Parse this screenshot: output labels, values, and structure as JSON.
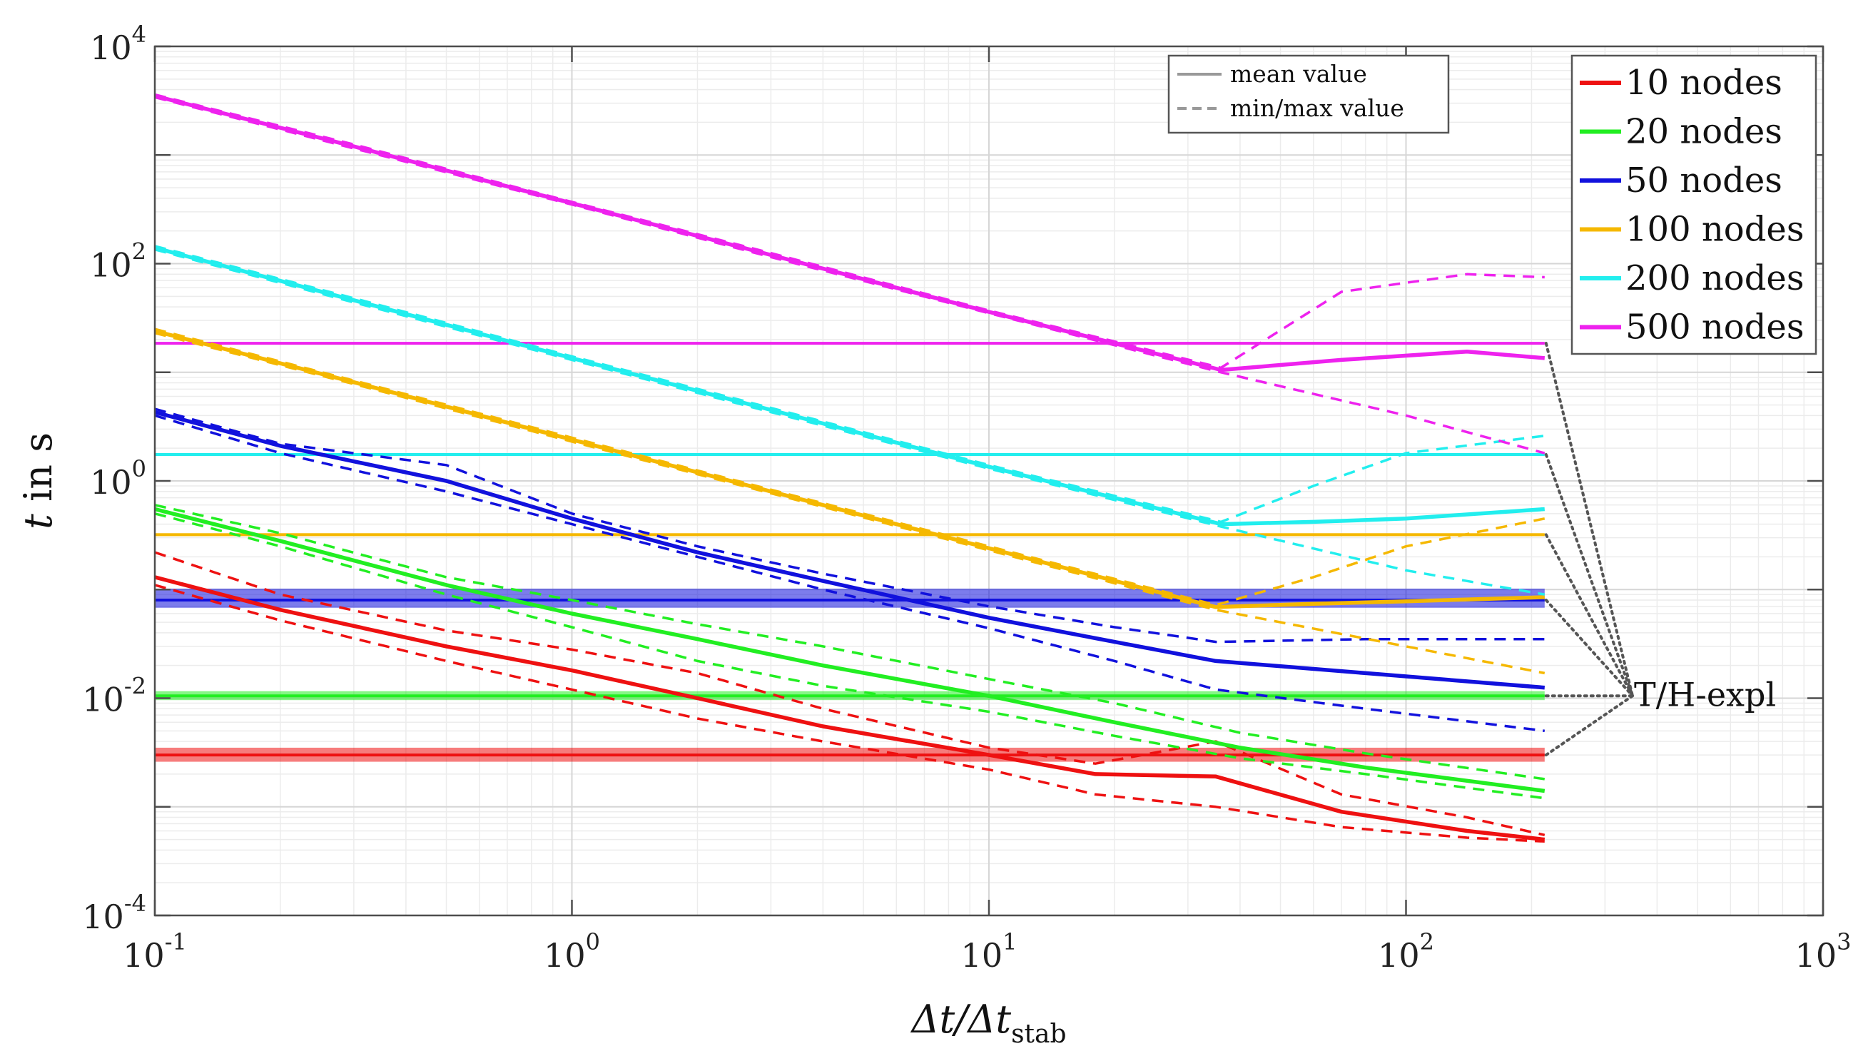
{
  "chart_data": {
    "type": "line",
    "xscale": "log",
    "yscale": "log",
    "xlim": [
      0.1,
      1000
    ],
    "ylim": [
      0.0001,
      10000
    ],
    "xticks": [
      {
        "value": 0.1,
        "base": "10",
        "exp": "-1"
      },
      {
        "value": 1,
        "base": "10",
        "exp": "0"
      },
      {
        "value": 10,
        "base": "10",
        "exp": "1"
      },
      {
        "value": 100,
        "base": "10",
        "exp": "2"
      },
      {
        "value": 1000,
        "base": "10",
        "exp": "3"
      }
    ],
    "yticks": [
      {
        "value": 0.0001,
        "base": "10",
        "exp": "-4"
      },
      {
        "value": 0.01,
        "base": "10",
        "exp": "-2"
      },
      {
        "value": 1,
        "base": "10",
        "exp": "0"
      },
      {
        "value": 100,
        "base": "10",
        "exp": "2"
      },
      {
        "value": 10000,
        "base": "10",
        "exp": "4"
      }
    ],
    "xlabel": {
      "main": "Δt/Δt",
      "sub": "stab"
    },
    "ylabel": {
      "var": "t",
      "rest": " in s"
    },
    "grid": true,
    "line_style_legend": [
      {
        "label": "mean value",
        "style": "solid"
      },
      {
        "label": "min/max value",
        "style": "dashed"
      }
    ],
    "annotation": "T/H-expl",
    "series": [
      {
        "name": "10 nodes",
        "color": "#ee1111",
        "mean": [
          [
            0.1,
            0.13
          ],
          [
            0.2,
            0.065
          ],
          [
            0.5,
            0.03
          ],
          [
            1,
            0.018
          ],
          [
            2,
            0.01
          ],
          [
            4,
            0.0055
          ],
          [
            10,
            0.003
          ],
          [
            18,
            0.002
          ],
          [
            35,
            0.0019
          ],
          [
            70,
            0.0009
          ],
          [
            140,
            0.0006
          ],
          [
            215,
            0.0005
          ]
        ],
        "min": [
          [
            0.1,
            0.11
          ],
          [
            0.2,
            0.052
          ],
          [
            0.5,
            0.022
          ],
          [
            1,
            0.012
          ],
          [
            2,
            0.0065
          ],
          [
            4,
            0.004
          ],
          [
            10,
            0.0022
          ],
          [
            18,
            0.0013
          ],
          [
            35,
            0.001
          ],
          [
            70,
            0.00065
          ],
          [
            140,
            0.00052
          ],
          [
            215,
            0.00048
          ]
        ],
        "max": [
          [
            0.1,
            0.22
          ],
          [
            0.2,
            0.09
          ],
          [
            0.5,
            0.042
          ],
          [
            1,
            0.028
          ],
          [
            2,
            0.017
          ],
          [
            4,
            0.008
          ],
          [
            10,
            0.0035
          ],
          [
            18,
            0.0025
          ],
          [
            35,
            0.004
          ],
          [
            70,
            0.0013
          ],
          [
            140,
            0.0008
          ],
          [
            215,
            0.00055
          ]
        ],
        "explicit": 0.003,
        "explicit_band": [
          0.0026,
          0.0035
        ]
      },
      {
        "name": "20 nodes",
        "color": "#22ee22",
        "mean": [
          [
            0.1,
            0.55
          ],
          [
            0.2,
            0.28
          ],
          [
            0.5,
            0.11
          ],
          [
            1,
            0.06
          ],
          [
            2,
            0.035
          ],
          [
            4,
            0.02
          ],
          [
            10,
            0.0105
          ],
          [
            20,
            0.006
          ],
          [
            40,
            0.0035
          ],
          [
            80,
            0.0023
          ],
          [
            215,
            0.0014
          ]
        ],
        "min": [
          [
            0.1,
            0.5
          ],
          [
            0.2,
            0.25
          ],
          [
            0.5,
            0.09
          ],
          [
            1,
            0.045
          ],
          [
            2,
            0.022
          ],
          [
            4,
            0.013
          ],
          [
            10,
            0.0075
          ],
          [
            20,
            0.0045
          ],
          [
            40,
            0.0028
          ],
          [
            80,
            0.002
          ],
          [
            215,
            0.0012
          ]
        ],
        "max": [
          [
            0.1,
            0.6
          ],
          [
            0.2,
            0.33
          ],
          [
            0.5,
            0.13
          ],
          [
            1,
            0.08
          ],
          [
            2,
            0.048
          ],
          [
            4,
            0.03
          ],
          [
            10,
            0.015
          ],
          [
            20,
            0.009
          ],
          [
            40,
            0.0048
          ],
          [
            80,
            0.0031
          ],
          [
            215,
            0.0018
          ]
        ],
        "explicit": 0.0105,
        "explicit_band": [
          0.0096,
          0.0116
        ]
      },
      {
        "name": "50 nodes",
        "color": "#1111dd",
        "mean": [
          [
            0.1,
            4.3
          ],
          [
            0.2,
            2.1
          ],
          [
            0.5,
            1.0
          ],
          [
            1,
            0.45
          ],
          [
            2,
            0.22
          ],
          [
            4,
            0.12
          ],
          [
            10,
            0.055
          ],
          [
            20,
            0.033
          ],
          [
            35,
            0.022
          ],
          [
            80,
            0.017
          ],
          [
            215,
            0.0125
          ]
        ],
        "min": [
          [
            0.1,
            4.0
          ],
          [
            0.2,
            1.8
          ],
          [
            0.5,
            0.8
          ],
          [
            1,
            0.4
          ],
          [
            2,
            0.2
          ],
          [
            4,
            0.1
          ],
          [
            10,
            0.044
          ],
          [
            20,
            0.022
          ],
          [
            35,
            0.012
          ],
          [
            80,
            0.008
          ],
          [
            215,
            0.005
          ]
        ],
        "max": [
          [
            0.1,
            4.6
          ],
          [
            0.2,
            2.2
          ],
          [
            0.5,
            1.4
          ],
          [
            1,
            0.5
          ],
          [
            2,
            0.25
          ],
          [
            4,
            0.14
          ],
          [
            10,
            0.07
          ],
          [
            20,
            0.045
          ],
          [
            35,
            0.033
          ],
          [
            80,
            0.035
          ],
          [
            215,
            0.035
          ]
        ],
        "explicit": 0.08,
        "explicit_band": [
          0.068,
          0.102
        ]
      },
      {
        "name": "100 nodes",
        "color": "#f5b800",
        "mean": [
          [
            0.1,
            24
          ],
          [
            0.3,
            8.1
          ],
          [
            1,
            2.4
          ],
          [
            3,
            0.8
          ],
          [
            10,
            0.24
          ],
          [
            35,
            0.069
          ],
          [
            60,
            0.074
          ],
          [
            100,
            0.078
          ],
          [
            215,
            0.085
          ]
        ],
        "min": [
          [
            0.1,
            23
          ],
          [
            0.3,
            7.8
          ],
          [
            1,
            2.3
          ],
          [
            3,
            0.77
          ],
          [
            10,
            0.23
          ],
          [
            35,
            0.065
          ],
          [
            100,
            0.03
          ],
          [
            215,
            0.017
          ]
        ],
        "max": [
          [
            0.1,
            25
          ],
          [
            0.3,
            8.4
          ],
          [
            1,
            2.5
          ],
          [
            3,
            0.83
          ],
          [
            10,
            0.25
          ],
          [
            35,
            0.072
          ],
          [
            60,
            0.13
          ],
          [
            100,
            0.25
          ],
          [
            215,
            0.45
          ]
        ],
        "explicit": 0.32,
        "explicit_band": [
          0.31,
          0.33
        ]
      },
      {
        "name": "200 nodes",
        "color": "#22eeee",
        "mean": [
          [
            0.1,
            140
          ],
          [
            0.3,
            46
          ],
          [
            1,
            13.5
          ],
          [
            3,
            4.5
          ],
          [
            10,
            1.35
          ],
          [
            36,
            0.4
          ],
          [
            60,
            0.42
          ],
          [
            100,
            0.45
          ],
          [
            215,
            0.55
          ]
        ],
        "min": [
          [
            0.1,
            135
          ],
          [
            0.3,
            44
          ],
          [
            1,
            13
          ],
          [
            3,
            4.3
          ],
          [
            10,
            1.3
          ],
          [
            36,
            0.38
          ],
          [
            100,
            0.15
          ],
          [
            215,
            0.09
          ]
        ],
        "max": [
          [
            0.1,
            145
          ],
          [
            0.3,
            48
          ],
          [
            1,
            14
          ],
          [
            3,
            4.7
          ],
          [
            10,
            1.4
          ],
          [
            36,
            0.42
          ],
          [
            60,
            0.9
          ],
          [
            100,
            1.8
          ],
          [
            215,
            2.6
          ]
        ],
        "explicit": 1.75,
        "explicit_band": [
          1.7,
          1.8
        ]
      },
      {
        "name": "500 nodes",
        "color": "#ee22ee",
        "mean": [
          [
            0.1,
            3500
          ],
          [
            0.3,
            1200
          ],
          [
            1,
            360
          ],
          [
            3,
            120
          ],
          [
            10,
            36
          ],
          [
            36,
            10.5
          ],
          [
            70,
            13
          ],
          [
            140,
            15.5
          ],
          [
            215,
            13.5
          ]
        ],
        "min": [
          [
            0.1,
            3400
          ],
          [
            0.3,
            1150
          ],
          [
            1,
            350
          ],
          [
            3,
            115
          ],
          [
            10,
            35
          ],
          [
            36,
            10
          ],
          [
            100,
            4
          ],
          [
            215,
            1.8
          ]
        ],
        "max": [
          [
            0.1,
            3600
          ],
          [
            0.3,
            1250
          ],
          [
            1,
            370
          ],
          [
            3,
            125
          ],
          [
            10,
            37
          ],
          [
            36,
            11
          ],
          [
            70,
            55
          ],
          [
            140,
            80
          ],
          [
            215,
            75
          ]
        ],
        "explicit": 18.5,
        "explicit_band": [
          18,
          19
        ]
      }
    ]
  }
}
